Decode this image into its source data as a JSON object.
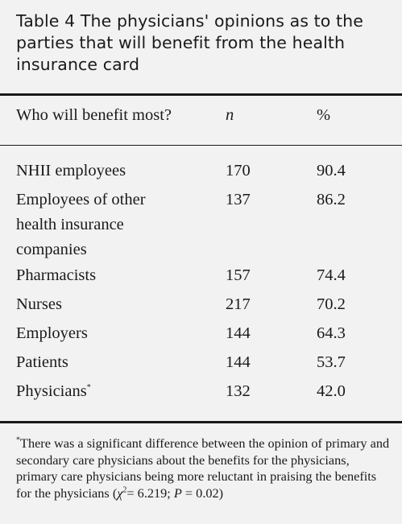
{
  "caption": {
    "label": "Table 4",
    "text": "The physicians' opinions as to the parties that will benefit from the health insurance card"
  },
  "table": {
    "headers": {
      "who": "Who will benefit most?",
      "n": "n",
      "pct": "%"
    },
    "rows": [
      {
        "who": "NHII employees",
        "n": "170",
        "pct": "90.4"
      },
      {
        "who": "Employees of other health insurance companies",
        "n": "137",
        "pct": "86.2"
      },
      {
        "who": "Pharmacists",
        "n": "157",
        "pct": "74.4"
      },
      {
        "who": "Nurses",
        "n": "217",
        "pct": "70.2"
      },
      {
        "who": "Employers",
        "n": "144",
        "pct": "64.3"
      },
      {
        "who": "Patients",
        "n": "144",
        "pct": "53.7"
      },
      {
        "who": "Physicians",
        "n": "132",
        "pct": "42.0"
      }
    ],
    "asterisk": "*"
  },
  "footnote": {
    "marker": "*",
    "text": "There was a significant difference between the opinion of primary and secondary care physicians about the benefits for the physicians, primary care physicians being more reluctant in praising the benefits for the physicians (",
    "chi": "χ",
    "chi_sup": "2",
    "stat": "= 6.219; ",
    "p_label": "P",
    "p_value": " = 0.02)"
  }
}
